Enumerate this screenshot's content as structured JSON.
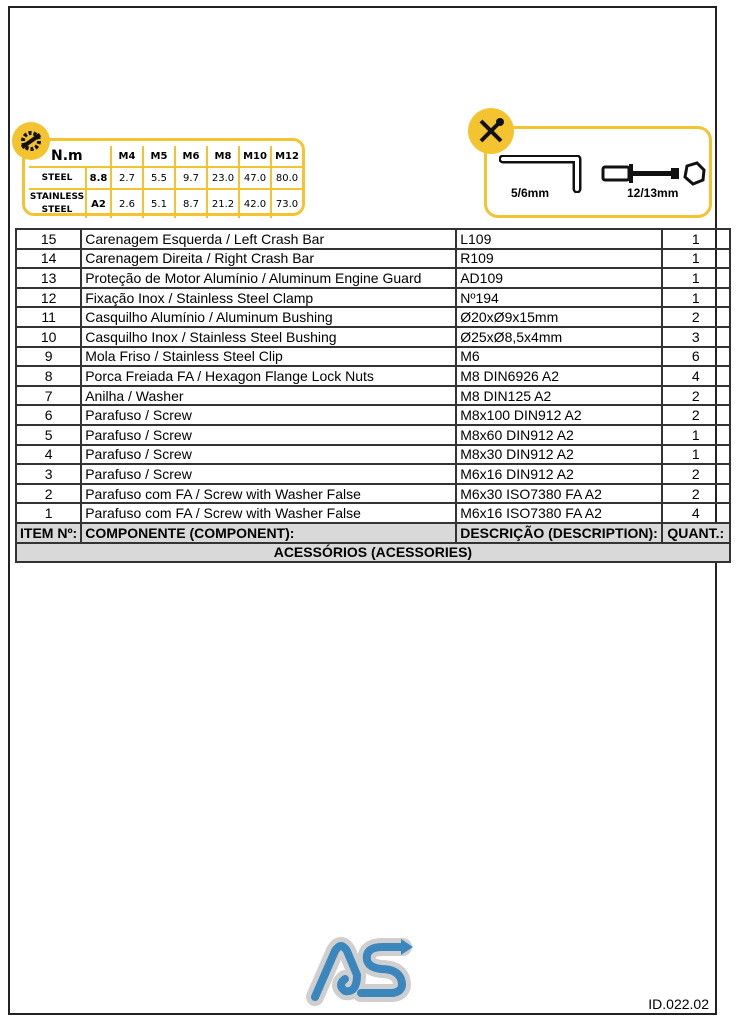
{
  "torque_table": {
    "unit": "N.m",
    "sizes": [
      "M4",
      "M5",
      "M6",
      "M8",
      "M10",
      "M12"
    ],
    "rows": [
      {
        "material": "STEEL",
        "grade": "8.8",
        "values": [
          "2.7",
          "5.5",
          "9.7",
          "23.0",
          "47.0",
          "80.0"
        ]
      },
      {
        "material": "STAINLESS STEEL",
        "grade": "A2",
        "values": [
          "2.6",
          "5.1",
          "8.7",
          "21.2",
          "42.0",
          "73.0"
        ]
      }
    ],
    "accent_color": "#f4c430"
  },
  "tools": {
    "allen_key": "5/6mm",
    "socket": "12/13mm"
  },
  "parts": {
    "rows": [
      {
        "item": "15",
        "component": "Carenagem Esquerda / Left Crash Bar",
        "description": "L109",
        "qty": "1"
      },
      {
        "item": "14",
        "component": "Carenagem Direita / Right Crash Bar",
        "description": "R109",
        "qty": "1"
      },
      {
        "item": "13",
        "component": "Proteção de Motor Alumínio / Aluminum Engine Guard",
        "description": "AD109",
        "qty": "1"
      },
      {
        "item": "12",
        "component": "Fixação Inox / Stainless Steel Clamp",
        "description": "Nº194",
        "qty": "1"
      },
      {
        "item": "11",
        "component": "Casquilho Alumínio / Aluminum Bushing",
        "description": "Ø20xØ9x15mm",
        "qty": "2"
      },
      {
        "item": "10",
        "component": "Casquilho Inox / Stainless Steel Bushing",
        "description": "Ø25xØ8,5x4mm",
        "qty": "3"
      },
      {
        "item": "9",
        "component": "Mola Friso / Stainless Steel Clip",
        "description": "M6",
        "qty": "6"
      },
      {
        "item": "8",
        "component": "Porca Freiada FA / Hexagon Flange Lock Nuts",
        "description": "M8 DIN6926 A2",
        "qty": "4"
      },
      {
        "item": "7",
        "component": "Anilha / Washer",
        "description": "M8 DIN125 A2",
        "qty": "2"
      },
      {
        "item": "6",
        "component": "Parafuso / Screw",
        "description": "M8x100 DIN912 A2",
        "qty": "2"
      },
      {
        "item": "5",
        "component": "Parafuso / Screw",
        "description": "M8x60 DIN912 A2",
        "qty": "1"
      },
      {
        "item": "4",
        "component": "Parafuso / Screw",
        "description": "M8x30 DIN912 A2",
        "qty": "1"
      },
      {
        "item": "3",
        "component": "Parafuso / Screw",
        "description": "M6x16 DIN912 A2",
        "qty": "2"
      },
      {
        "item": "2",
        "component": "Parafuso com FA / Screw with Washer False",
        "description": "M6x30 ISO7380  FA A2",
        "qty": "2"
      },
      {
        "item": "1",
        "component": "Parafuso com FA / Screw with Washer False",
        "description": "M6x16 ISO7380 FA A2",
        "qty": "4"
      }
    ],
    "headers": {
      "item": "ITEM Nº:",
      "component": "COMPONENTE (COMPONENT):",
      "description": "DESCRIÇÃO (DESCRIPTION):",
      "qty": "QUANT.:"
    },
    "footer": "ACESSÓRIOS (ACESSORIES)"
  },
  "logo_text": "AS",
  "doc_id": "ID.022.02"
}
